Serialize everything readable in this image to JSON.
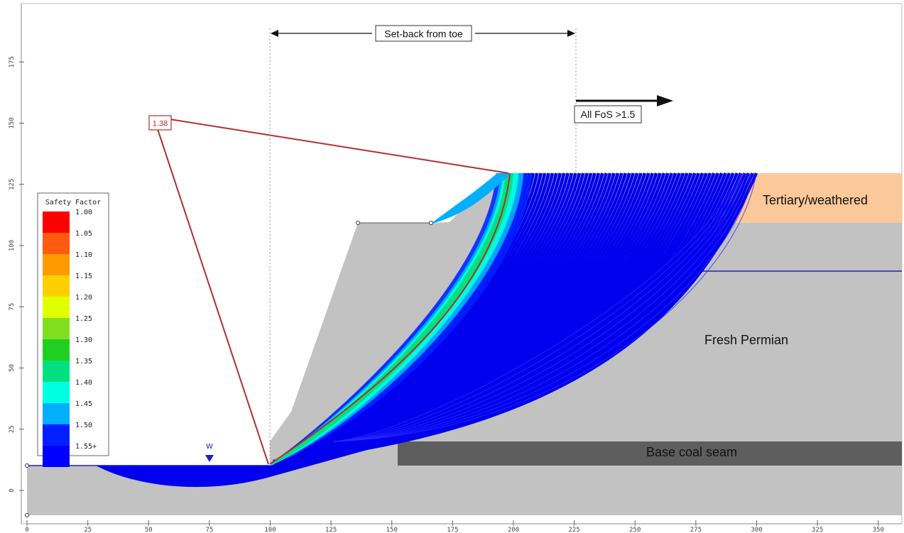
{
  "chart_data": {
    "type": "slope-stability",
    "x_ticks": [
      "0",
      "25",
      "50",
      "75",
      "100",
      "125",
      "150",
      "175",
      "200",
      "225",
      "250",
      "275",
      "300",
      "325",
      "350"
    ],
    "y_ticks": [
      "0",
      "25",
      "50",
      "75",
      "100",
      "125",
      "150",
      "175"
    ],
    "legend": {
      "title": "Safety Factor",
      "levels": [
        {
          "label": "1.00",
          "color": "#ff0000"
        },
        {
          "label": "1.05",
          "color": "#ff5a10"
        },
        {
          "label": "1.10",
          "color": "#ff9a00"
        },
        {
          "label": "1.15",
          "color": "#ffd000"
        },
        {
          "label": "1.20",
          "color": "#e0ff00"
        },
        {
          "label": "1.25",
          "color": "#80e020"
        },
        {
          "label": "1.30",
          "color": "#20d020"
        },
        {
          "label": "1.35",
          "color": "#00e080"
        },
        {
          "label": "1.40",
          "color": "#00ffe0"
        },
        {
          "label": "1.45",
          "color": "#00b0ff"
        },
        {
          "label": "1.50",
          "color": "#0020ff"
        },
        {
          "label": "1.55+",
          "color": "#0000ff"
        }
      ]
    },
    "critical_fos": "1.38",
    "water_marker": "W",
    "annotations": {
      "setback": "Set-back from toe",
      "all_fos": "All FoS >1.5"
    },
    "regions": {
      "tertiary": "Tertiary/weathered",
      "permian": "Fresh Permian",
      "coal": "Base coal seam"
    },
    "colors": {
      "rock": "#c2c2c2",
      "coal": "#5e5e5e",
      "tertiary": "#fcc89a",
      "surfaces": "#0000ee",
      "critical": "#b03030"
    }
  }
}
